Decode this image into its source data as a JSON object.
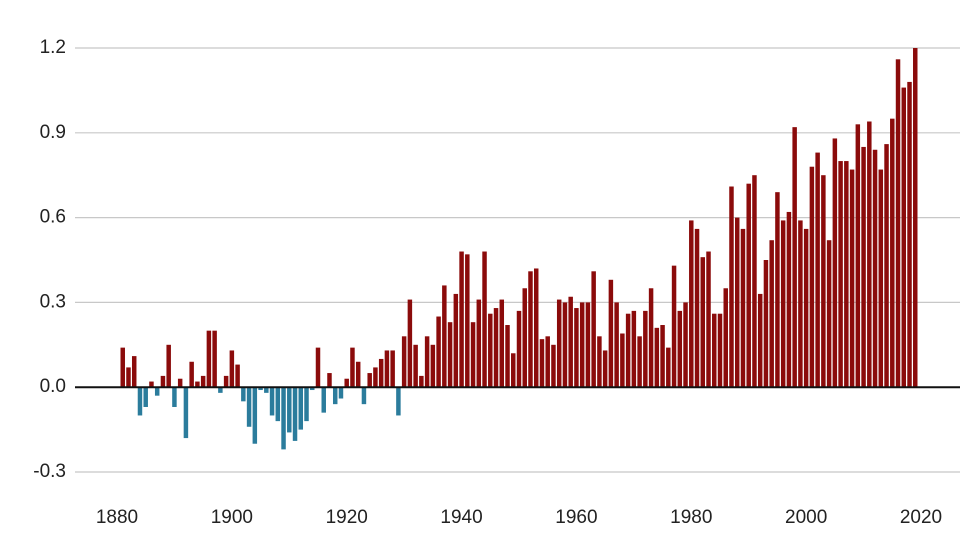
{
  "chart_data": {
    "type": "bar",
    "x": [
      1881,
      1882,
      1883,
      1884,
      1885,
      1886,
      1887,
      1888,
      1889,
      1890,
      1891,
      1892,
      1893,
      1894,
      1895,
      1896,
      1897,
      1898,
      1899,
      1900,
      1901,
      1902,
      1903,
      1904,
      1905,
      1906,
      1907,
      1908,
      1909,
      1910,
      1911,
      1912,
      1913,
      1914,
      1915,
      1916,
      1917,
      1918,
      1919,
      1920,
      1921,
      1922,
      1923,
      1924,
      1925,
      1926,
      1927,
      1928,
      1929,
      1930,
      1931,
      1932,
      1933,
      1934,
      1935,
      1936,
      1937,
      1938,
      1939,
      1940,
      1941,
      1942,
      1943,
      1944,
      1945,
      1946,
      1947,
      1948,
      1949,
      1950,
      1951,
      1952,
      1953,
      1954,
      1955,
      1956,
      1957,
      1958,
      1959,
      1960,
      1961,
      1962,
      1963,
      1964,
      1965,
      1966,
      1967,
      1968,
      1969,
      1970,
      1971,
      1972,
      1973,
      1974,
      1975,
      1976,
      1977,
      1978,
      1979,
      1980,
      1981,
      1982,
      1983,
      1984,
      1985,
      1986,
      1987,
      1988,
      1989,
      1990,
      1991,
      1992,
      1993,
      1994,
      1995,
      1996,
      1997,
      1998,
      1999,
      2000,
      2001,
      2002,
      2003,
      2004,
      2005,
      2006,
      2007,
      2008,
      2009,
      2010,
      2011,
      2012,
      2013,
      2014,
      2015,
      2016,
      2017,
      2018,
      2019
    ],
    "values": [
      0.14,
      0.07,
      0.11,
      -0.1,
      -0.07,
      0.02,
      -0.03,
      0.04,
      0.15,
      -0.07,
      0.03,
      -0.18,
      0.09,
      0.02,
      0.04,
      0.2,
      0.2,
      -0.02,
      0.04,
      0.13,
      0.08,
      -0.05,
      -0.14,
      -0.2,
      -0.01,
      -0.02,
      -0.1,
      -0.12,
      -0.22,
      -0.16,
      -0.19,
      -0.15,
      -0.12,
      -0.01,
      0.14,
      -0.09,
      0.05,
      -0.06,
      -0.04,
      0.03,
      0.14,
      0.09,
      -0.06,
      0.05,
      0.07,
      0.1,
      0.13,
      0.13,
      -0.1,
      0.18,
      0.31,
      0.15,
      0.04,
      0.18,
      0.15,
      0.25,
      0.36,
      0.23,
      0.33,
      0.48,
      0.47,
      0.23,
      0.31,
      0.48,
      0.26,
      0.28,
      0.31,
      0.22,
      0.12,
      0.27,
      0.35,
      0.41,
      0.42,
      0.17,
      0.18,
      0.15,
      0.31,
      0.3,
      0.32,
      0.28,
      0.3,
      0.3,
      0.41,
      0.18,
      0.13,
      0.38,
      0.3,
      0.19,
      0.26,
      0.27,
      0.18,
      0.27,
      0.35,
      0.21,
      0.22,
      0.14,
      0.43,
      0.27,
      0.3,
      0.59,
      0.56,
      0.46,
      0.48,
      0.26,
      0.26,
      0.35,
      0.71,
      0.6,
      0.56,
      0.72,
      0.75,
      0.33,
      0.45,
      0.52,
      0.69,
      0.59,
      0.62,
      0.92,
      0.59,
      0.56,
      0.78,
      0.83,
      0.75,
      0.52,
      0.88,
      0.8,
      0.8,
      0.77,
      0.93,
      0.85,
      0.94,
      0.84,
      0.77,
      0.86,
      0.95,
      1.16,
      1.06,
      1.08,
      1.2
    ],
    "positive_color": "#8b0b0b",
    "negative_color": "#2b7c9c",
    "xlim": [
      1880,
      2020
    ],
    "xticks": [
      1880,
      1900,
      1920,
      1940,
      1960,
      1980,
      2000,
      2020
    ],
    "ylim": [
      -0.3,
      1.2
    ],
    "yticks": [
      -0.3,
      {
        "value": 0,
        "label": "0.0"
      },
      0.3,
      0.6,
      0.9,
      1.2
    ],
    "grid": true
  }
}
